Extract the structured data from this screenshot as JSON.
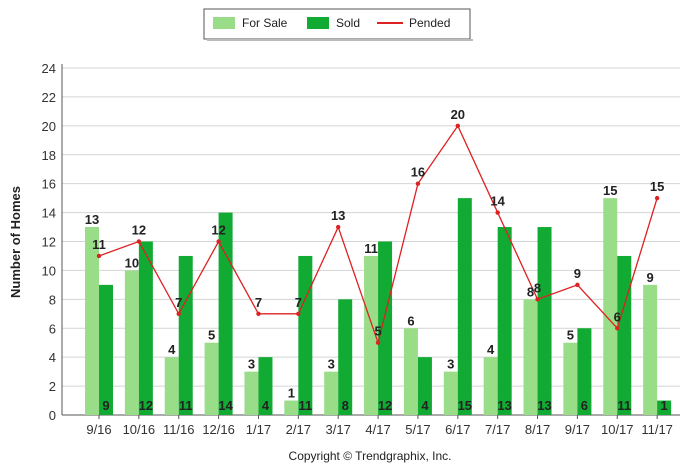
{
  "chart_data": {
    "type": "bar",
    "categories": [
      "9/16",
      "10/16",
      "11/16",
      "12/16",
      "1/17",
      "2/17",
      "3/17",
      "4/17",
      "5/17",
      "6/17",
      "7/17",
      "8/17",
      "9/17",
      "10/17",
      "11/17"
    ],
    "series": [
      {
        "name": "For Sale",
        "kind": "bar",
        "color": "#99dd88",
        "values": [
          13,
          10,
          4,
          5,
          3,
          1,
          3,
          11,
          6,
          3,
          4,
          8,
          5,
          15,
          9
        ]
      },
      {
        "name": "Sold",
        "kind": "bar",
        "color": "#11aa33",
        "values": [
          9,
          12,
          11,
          14,
          4,
          11,
          8,
          12,
          4,
          15,
          13,
          13,
          6,
          11,
          1
        ]
      },
      {
        "name": "Pended",
        "kind": "line",
        "color": "#dd2222",
        "values": [
          11,
          12,
          7,
          12,
          7,
          7,
          13,
          5,
          16,
          20,
          14,
          8,
          9,
          6,
          15
        ]
      }
    ],
    "ylabel": "Number of Homes",
    "ylim": [
      0,
      24
    ],
    "yticks": [
      0,
      2,
      4,
      6,
      8,
      10,
      12,
      14,
      16,
      18,
      20,
      22,
      24
    ],
    "grid": true,
    "legend_position": "top-center",
    "footer": "Copyright © Trendgraphix, Inc."
  }
}
